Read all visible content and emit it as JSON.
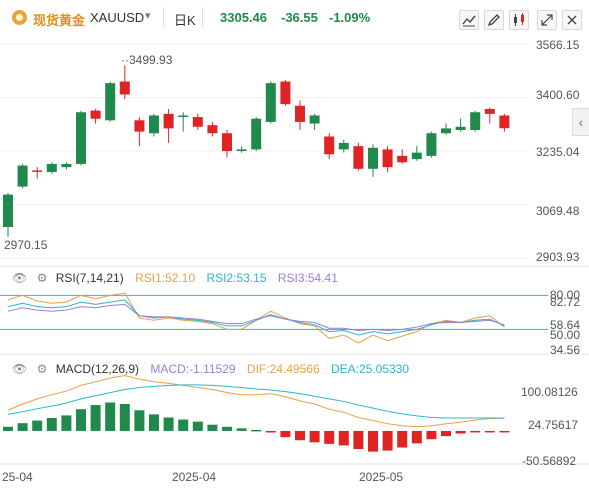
{
  "header": {
    "symbol_cn": "现货黄金",
    "symbol_code": "XAUUSD",
    "interval": "日K",
    "price": "3305.46",
    "change": "-36.55",
    "change_pct": "-1.09%"
  },
  "price_axis": {
    "ticks": [
      "3566.15",
      "3400.60",
      "3235.04",
      "3069.48",
      "2903.93"
    ],
    "high_label": "3499.93",
    "low_label": "2970.15"
  },
  "rsi": {
    "title": "RSI(7,14,21)",
    "rsi1": "RSI1:52.10",
    "rsi2": "RSI2:53.15",
    "rsi3": "RSI3:54.41",
    "ticks": [
      "80.00",
      "82.72",
      "58.64",
      "50.00",
      "34.56"
    ]
  },
  "macd": {
    "title": "MACD(12,26,9)",
    "macd": "MACD:-1.11529",
    "dif": "DIF:24.49566",
    "dea": "DEA:25.05330",
    "ticks": [
      "100.08126",
      "24.75617",
      "-50.56892"
    ]
  },
  "time_axis": [
    "25-04",
    "2025-04",
    "2025-05"
  ],
  "colors": {
    "up": "#1f8a4c",
    "down": "#e02424",
    "rsi1": "#e8a04a",
    "rsi2": "#2bb6c9",
    "rsi3": "#9a7fd6",
    "dif": "#e8a04a",
    "dea": "#2bb6c9"
  },
  "chart_data": [
    {
      "type": "candlestick",
      "ylim": [
        2903.93,
        3566.15
      ],
      "candles": [
        [
          3000,
          3100,
          2970.15,
          3105
        ],
        [
          3125,
          3190,
          3120,
          3195
        ],
        [
          3175,
          3172,
          3150,
          3185
        ],
        [
          3170,
          3195,
          3165,
          3200
        ],
        [
          3185,
          3195,
          3178,
          3200
        ],
        [
          3195,
          3355,
          3190,
          3360
        ],
        [
          3360,
          3335,
          3320,
          3365
        ],
        [
          3330,
          3445,
          3325,
          3450
        ],
        [
          3450,
          3410,
          3395,
          3499.93
        ],
        [
          3330,
          3295,
          3250,
          3340
        ],
        [
          3290,
          3345,
          3280,
          3350
        ],
        [
          3350,
          3305,
          3260,
          3365
        ],
        [
          3345,
          3345,
          3295,
          3355
        ],
        [
          3340,
          3310,
          3300,
          3350
        ],
        [
          3315,
          3290,
          3280,
          3325
        ],
        [
          3290,
          3235,
          3215,
          3300
        ],
        [
          3235,
          3240,
          3230,
          3250
        ],
        [
          3240,
          3335,
          3235,
          3340
        ],
        [
          3325,
          3445,
          3320,
          3450
        ],
        [
          3450,
          3380,
          3375,
          3455
        ],
        [
          3375,
          3325,
          3300,
          3390
        ],
        [
          3320,
          3345,
          3300,
          3350
        ],
        [
          3280,
          3225,
          3210,
          3290
        ],
        [
          3240,
          3260,
          3230,
          3270
        ],
        [
          3250,
          3180,
          3175,
          3260
        ],
        [
          3180,
          3245,
          3155,
          3255
        ],
        [
          3240,
          3185,
          3170,
          3250
        ],
        [
          3220,
          3200,
          3195,
          3240
        ],
        [
          3210,
          3230,
          3205,
          3250
        ],
        [
          3220,
          3290,
          3215,
          3295
        ],
        [
          3290,
          3305,
          3285,
          3320
        ],
        [
          3300,
          3310,
          3295,
          3335
        ],
        [
          3300,
          3355,
          3295,
          3360
        ],
        [
          3365,
          3350,
          3320,
          3370
        ],
        [
          3345,
          3305.46,
          3295,
          3350
        ]
      ]
    },
    {
      "type": "line",
      "ylim": [
        30,
        90
      ],
      "series": [
        {
          "name": "RSI1",
          "values": [
            76,
            80,
            75,
            73,
            74,
            80,
            77,
            80,
            82,
            60,
            58,
            60,
            58,
            57,
            55,
            50,
            50,
            58,
            66,
            60,
            55,
            53,
            42,
            45,
            38,
            45,
            40,
            44,
            48,
            55,
            58,
            56,
            60,
            62,
            52
          ]
        },
        {
          "name": "RSI2",
          "values": [
            70,
            73,
            70,
            69,
            70,
            74,
            72,
            74,
            76,
            62,
            60,
            61,
            59,
            58,
            56,
            53,
            53,
            58,
            63,
            59,
            56,
            54,
            48,
            49,
            45,
            48,
            46,
            48,
            50,
            54,
            57,
            56,
            58,
            59,
            53
          ]
        },
        {
          "name": "RSI3",
          "values": [
            66,
            69,
            67,
            66,
            67,
            70,
            69,
            71,
            72,
            62,
            61,
            61,
            60,
            59,
            57,
            55,
            55,
            59,
            62,
            59,
            57,
            56,
            51,
            51,
            49,
            50,
            49,
            50,
            52,
            55,
            56,
            56,
            57,
            58,
            54
          ]
        }
      ]
    },
    {
      "type": "bar",
      "ylim": [
        -60,
        110
      ],
      "macd_bars": [
        8,
        15,
        20,
        25,
        30,
        42,
        50,
        55,
        52,
        40,
        32,
        26,
        22,
        18,
        12,
        8,
        5,
        2,
        -3,
        -12,
        -18,
        -22,
        -25,
        -28,
        -35,
        -40,
        -38,
        -32,
        -24,
        -16,
        -10,
        -5,
        -2,
        -1,
        -1.11529
      ],
      "series": [
        {
          "name": "DIF",
          "values": [
            40,
            52,
            62,
            70,
            77,
            88,
            95,
            102,
            107,
            100,
            95,
            92,
            88,
            84,
            80,
            74,
            70,
            70,
            72,
            66,
            58,
            52,
            42,
            36,
            26,
            20,
            14,
            10,
            8,
            10,
            14,
            17,
            21,
            24,
            24.49566
          ]
        },
        {
          "name": "DEA",
          "values": [
            32,
            37,
            43,
            48,
            54,
            62,
            68,
            74,
            80,
            84,
            86,
            88,
            89,
            89,
            88,
            86,
            84,
            81,
            79,
            76,
            72,
            67,
            62,
            57,
            50,
            44,
            38,
            33,
            29,
            26,
            25,
            25,
            25,
            25,
            25.0533
          ]
        }
      ]
    }
  ]
}
